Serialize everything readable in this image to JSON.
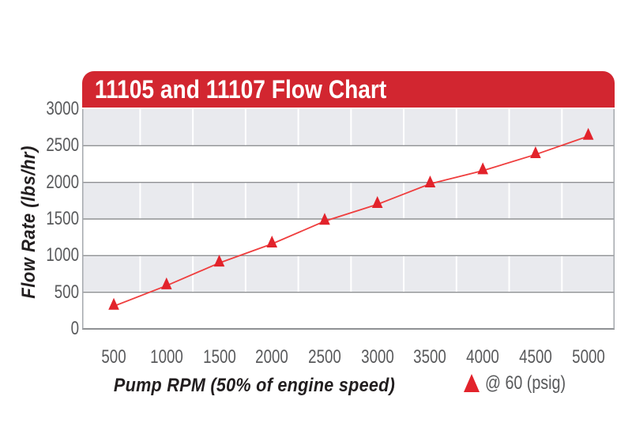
{
  "header": {
    "title": "11105 and 11107 Flow Chart"
  },
  "axes": {
    "x_title": "Pump RPM (50% of engine speed)",
    "y_title": "Flow Rate (lbs/hr)"
  },
  "legend": {
    "label": "@ 60 (psig)",
    "marker": "red-triangle"
  },
  "colors": {
    "banner_red": "#d22630",
    "marker_red": "#e2232b",
    "line_red": "#ef3e3e",
    "band_gray": "#e9eaee",
    "grid_dark": "#8f9194",
    "plot_border": "#a5a9ae",
    "grid_vertical_white": "#ffffff",
    "tick_text": "#58595b",
    "axis_text": "#221e1f"
  },
  "chart_data": {
    "type": "line",
    "title": "11105 and 11107 Flow Chart",
    "xlabel": "Pump RPM (50% of engine speed)",
    "ylabel": "Flow Rate (lbs/hr)",
    "x": [
      500,
      1000,
      1500,
      2000,
      2500,
      3000,
      3500,
      4000,
      4500,
      5000
    ],
    "series": [
      {
        "name": "@ 60 (psig)",
        "marker": "triangle",
        "color": "#e2232b",
        "values": [
          310,
          590,
          900,
          1160,
          1470,
          1700,
          1980,
          2160,
          2380,
          2630
        ]
      }
    ],
    "xticks": [
      500,
      1000,
      1500,
      2000,
      2500,
      3000,
      3500,
      4000,
      4500,
      5000
    ],
    "yticks": [
      0,
      500,
      1000,
      1500,
      2000,
      2500,
      3000
    ],
    "xlim": [
      200,
      5250
    ],
    "ylim": [
      0,
      3000
    ],
    "grid": {
      "horizontal": "major every 500",
      "vertical": "white lines at midpoints between x ticks"
    },
    "background_bands": "alternating gray/white horizontal bands every 500 units, gray at top",
    "legend_position": "below chart, right side"
  }
}
